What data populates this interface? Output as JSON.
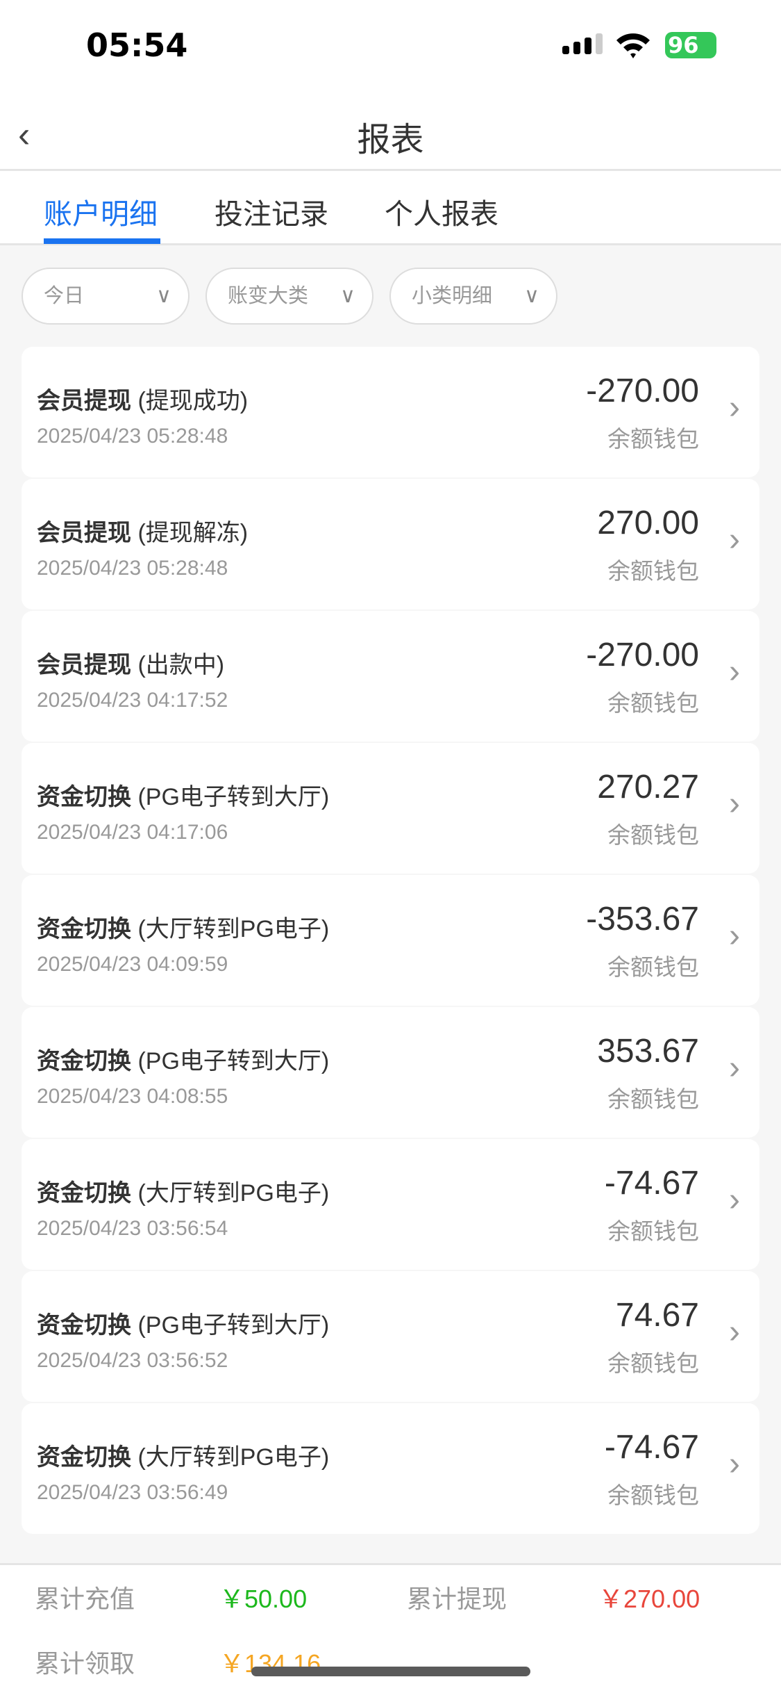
{
  "status_bar": {
    "time": "05:54",
    "battery": "96"
  },
  "header": {
    "title": "报表"
  },
  "tabs": [
    {
      "label": "账户明细",
      "active": true
    },
    {
      "label": "投注记录"
    },
    {
      "label": "个人报表"
    }
  ],
  "filters": [
    {
      "label": "今日"
    },
    {
      "label": "账变大类"
    },
    {
      "label": "小类明细"
    }
  ],
  "records": [
    {
      "type": "会员提现",
      "detail": "(提现成功)",
      "time": "2025/04/23 05:28:48",
      "amount": "-270.00",
      "wallet": "余额钱包"
    },
    {
      "type": "会员提现",
      "detail": "(提现解冻)",
      "time": "2025/04/23 05:28:48",
      "amount": "270.00",
      "wallet": "余额钱包"
    },
    {
      "type": "会员提现",
      "detail": "(出款中)",
      "time": "2025/04/23 04:17:52",
      "amount": "-270.00",
      "wallet": "余额钱包"
    },
    {
      "type": "资金切换",
      "detail": "(PG电子转到大厅)",
      "time": "2025/04/23 04:17:06",
      "amount": "270.27",
      "wallet": "余额钱包"
    },
    {
      "type": "资金切换",
      "detail": "(大厅转到PG电子)",
      "time": "2025/04/23 04:09:59",
      "amount": "-353.67",
      "wallet": "余额钱包"
    },
    {
      "type": "资金切换",
      "detail": "(PG电子转到大厅)",
      "time": "2025/04/23 04:08:55",
      "amount": "353.67",
      "wallet": "余额钱包"
    },
    {
      "type": "资金切换",
      "detail": "(大厅转到PG电子)",
      "time": "2025/04/23 03:56:54",
      "amount": "-74.67",
      "wallet": "余额钱包"
    },
    {
      "type": "资金切换",
      "detail": "(PG电子转到大厅)",
      "time": "2025/04/23 03:56:52",
      "amount": "74.67",
      "wallet": "余额钱包"
    },
    {
      "type": "资金切换",
      "detail": "(大厅转到PG电子)",
      "time": "2025/04/23 03:56:49",
      "amount": "-74.67",
      "wallet": "余额钱包"
    }
  ],
  "summary": {
    "deposit_label": "累计充值",
    "deposit_value": "￥50.00",
    "withdraw_label": "累计提现",
    "withdraw_value": "￥270.00",
    "claim_label": "累计领取",
    "claim_value": "￥134.16"
  },
  "colors": {
    "accent": "#1a73f0",
    "deposit": "#1cb81c",
    "withdraw": "#e8463b",
    "claim": "#f5a623",
    "battery": "#34c759"
  }
}
